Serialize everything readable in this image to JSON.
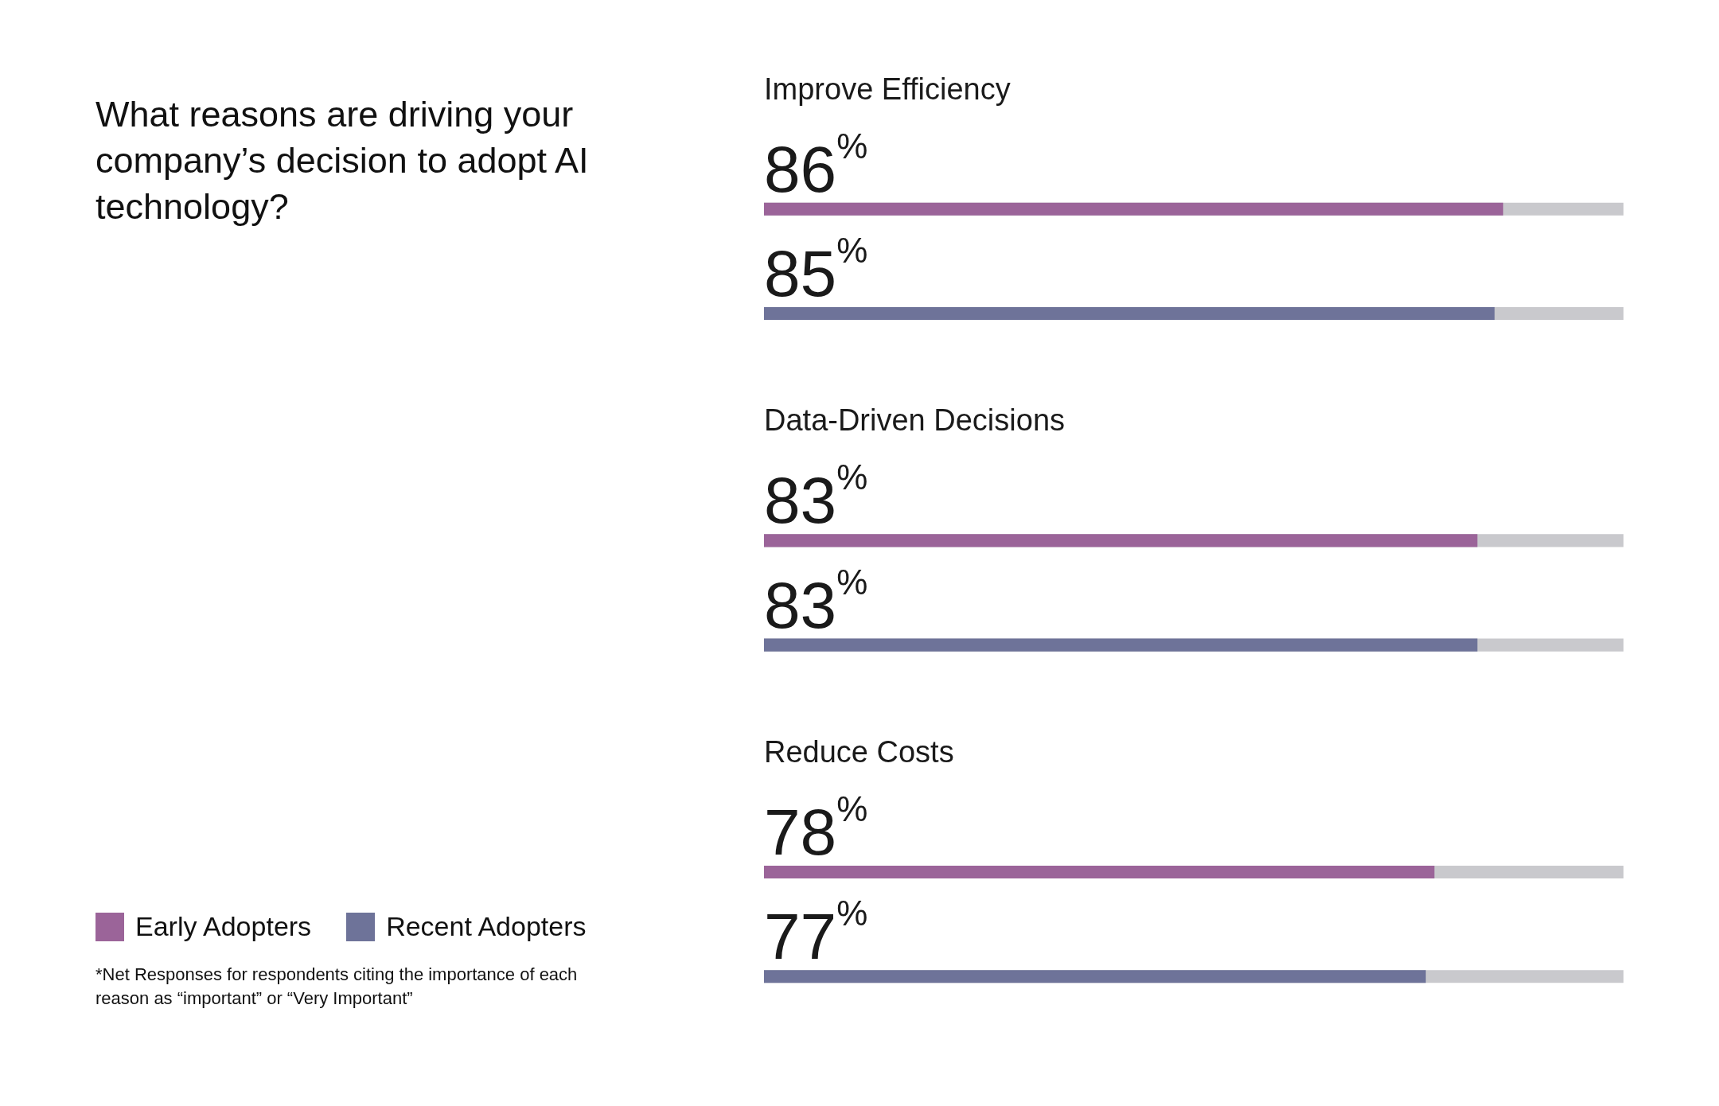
{
  "chart_data": {
    "type": "bar",
    "orientation": "horizontal",
    "title": "What reasons are driving your company’s decision to adopt AI technology?",
    "categories": [
      "Improve Efficiency",
      "Data-Driven Decisions",
      "Reduce Costs"
    ],
    "series": [
      {
        "name": "Early Adopters",
        "color": "#9b6499",
        "values": [
          86,
          83,
          78
        ],
        "value_labels": [
          "86%",
          "83%",
          "78%"
        ]
      },
      {
        "name": "Recent Adopters",
        "color": "#6e7399",
        "values": [
          85,
          83,
          77
        ],
        "value_labels": [
          "85%",
          "83%",
          "77%"
        ]
      }
    ],
    "xlim": [
      0,
      100
    ],
    "tick_labels": "y",
    "legend": "bottom left",
    "annotations": [
      "*Net Responses for respondents citing the importance of each reason as “important” or “Very Important”"
    ]
  }
}
